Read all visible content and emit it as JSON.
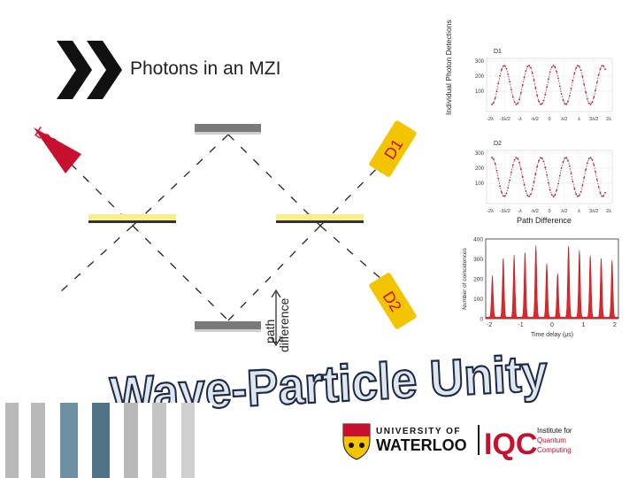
{
  "slide": {
    "title": "Photons in an MZI",
    "headline": "Wave-Particle Unity"
  },
  "diagram": {
    "laser_label": "Laser",
    "detector1_label": "D1",
    "detector2_label": "D2",
    "path_difference_label_line1": "path",
    "path_difference_label_line2": "difference"
  },
  "interference_plot": {
    "ylabel": "Individual Photon Detections",
    "xlabel": "Path Difference",
    "panel1": {
      "title": "D1",
      "yticks": [
        "300",
        "200",
        "100"
      ],
      "xticks": [
        "-2λ",
        "-3λ/2",
        "-λ",
        "-λ/2",
        "0",
        "λ/2",
        "λ",
        "3λ/2",
        "2λ"
      ]
    },
    "panel2": {
      "title": "D2",
      "yticks": [
        "300",
        "200",
        "100"
      ],
      "xticks": [
        "-2λ",
        "-3λ/2",
        "-λ",
        "-λ/2",
        "0",
        "λ/2",
        "λ",
        "3λ/2",
        "2λ"
      ]
    }
  },
  "coincidence_plot": {
    "ylabel": "Number of coincidences",
    "xlabel": "Time delay (μs)",
    "yticks": [
      "400",
      "300",
      "200",
      "100",
      "0"
    ],
    "xticks": [
      "-2",
      "-1",
      "0",
      "1",
      "2"
    ]
  },
  "logos": {
    "university_line1": "UNIVERSITY OF",
    "university_line2": "WATERLOO",
    "iqc": "IQC",
    "iqc_line1": "Institute for",
    "iqc_line2": "Quantum",
    "iqc_line3": "Computing"
  },
  "colors": {
    "accent_red": "#c8102e",
    "beam_splitter_yellow": "#f7ef8a",
    "mirror_gray": "#7a7a7a",
    "headline_fill": "#dfe6ee",
    "headline_stroke": "#1c2a44",
    "logo_gold": "#f2c500"
  }
}
